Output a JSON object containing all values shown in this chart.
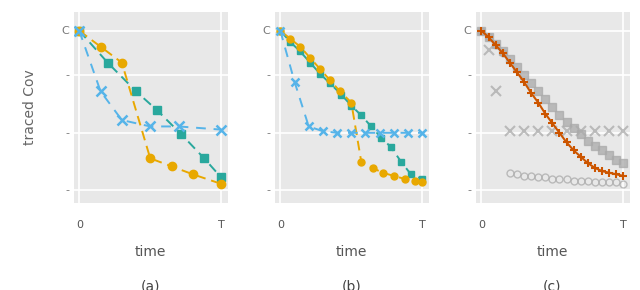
{
  "background_color": "#e8e8e8",
  "ylabel": "traced Cov",
  "xlabel": "time",
  "subplot_labels": [
    "(a)",
    "(b)",
    "(c)"
  ],
  "panel_a": {
    "green_x": [
      0,
      0.2,
      0.4,
      0.55,
      0.72,
      0.88,
      1.0
    ],
    "green_y": [
      1.0,
      0.8,
      0.62,
      0.5,
      0.35,
      0.2,
      0.08
    ],
    "orange_x": [
      0,
      0.15,
      0.3,
      0.5,
      0.65,
      0.8,
      1.0
    ],
    "orange_y": [
      1.0,
      0.9,
      0.8,
      0.2,
      0.15,
      0.1,
      0.04
    ],
    "blue_x": [
      0,
      0.15,
      0.3,
      0.5,
      0.7,
      1.0
    ],
    "blue_y": [
      1.0,
      0.62,
      0.44,
      0.4,
      0.4,
      0.38
    ]
  },
  "panel_b": {
    "green_x": [
      0,
      0.07,
      0.14,
      0.21,
      0.28,
      0.35,
      0.43,
      0.5,
      0.57,
      0.64,
      0.71,
      0.78,
      0.85,
      0.92,
      1.0
    ],
    "green_y": [
      1.0,
      0.93,
      0.87,
      0.8,
      0.73,
      0.67,
      0.6,
      0.53,
      0.47,
      0.4,
      0.33,
      0.27,
      0.18,
      0.1,
      0.07
    ],
    "orange_x": [
      0,
      0.07,
      0.14,
      0.21,
      0.28,
      0.35,
      0.42,
      0.5,
      0.57,
      0.65,
      0.72,
      0.8,
      0.88,
      0.95,
      1.0
    ],
    "orange_y": [
      1.0,
      0.95,
      0.9,
      0.83,
      0.76,
      0.69,
      0.62,
      0.55,
      0.18,
      0.14,
      0.11,
      0.09,
      0.07,
      0.06,
      0.05
    ],
    "blue_x": [
      0,
      0.1,
      0.2,
      0.3,
      0.4,
      0.5,
      0.6,
      0.7,
      0.8,
      0.9,
      1.0
    ],
    "blue_y": [
      1.0,
      0.68,
      0.4,
      0.37,
      0.36,
      0.36,
      0.36,
      0.36,
      0.36,
      0.36,
      0.36
    ]
  },
  "panel_c": {
    "orange_x": [
      0,
      0.05,
      0.1,
      0.15,
      0.2,
      0.25,
      0.3,
      0.35,
      0.4,
      0.45,
      0.5,
      0.55,
      0.6,
      0.65,
      0.7,
      0.75,
      0.8,
      0.85,
      0.9,
      0.95,
      1.0
    ],
    "orange_y": [
      1.0,
      0.96,
      0.91,
      0.86,
      0.8,
      0.74,
      0.68,
      0.61,
      0.55,
      0.48,
      0.42,
      0.36,
      0.3,
      0.25,
      0.21,
      0.17,
      0.14,
      0.12,
      0.11,
      0.1,
      0.09
    ],
    "gray_sq_x": [
      0,
      0.05,
      0.1,
      0.15,
      0.2,
      0.25,
      0.3,
      0.35,
      0.4,
      0.45,
      0.5,
      0.55,
      0.6,
      0.65,
      0.7,
      0.75,
      0.8,
      0.85,
      0.9,
      0.95,
      1.0
    ],
    "gray_sq_y": [
      1.0,
      0.96,
      0.92,
      0.87,
      0.82,
      0.77,
      0.72,
      0.67,
      0.62,
      0.57,
      0.52,
      0.47,
      0.43,
      0.39,
      0.35,
      0.31,
      0.28,
      0.25,
      0.22,
      0.19,
      0.17
    ],
    "gray_x_x": [
      0.05,
      0.1,
      0.2,
      0.3,
      0.4,
      0.5,
      0.6,
      0.7,
      0.8,
      0.9,
      1.0
    ],
    "gray_x_y": [
      0.88,
      0.62,
      0.37,
      0.37,
      0.37,
      0.37,
      0.37,
      0.37,
      0.37,
      0.37,
      0.37
    ],
    "gray_circ_x": [
      0,
      0.05,
      0.1,
      0.15,
      0.2,
      0.25,
      0.3,
      0.35,
      0.4,
      0.45,
      0.5,
      0.55,
      0.6,
      0.65,
      0.7,
      0.75,
      0.8,
      0.85,
      0.9,
      0.95,
      1.0
    ],
    "gray_circ_y": [
      1.0,
      0.96,
      0.91,
      0.86,
      0.11,
      0.1,
      0.09,
      0.09,
      0.08,
      0.08,
      0.07,
      0.07,
      0.07,
      0.06,
      0.06,
      0.06,
      0.05,
      0.05,
      0.05,
      0.05,
      0.04
    ]
  },
  "colors": {
    "green": "#29a89d",
    "orange": "#e8a800",
    "blue": "#56b4e9",
    "orange_c": "#cc5500",
    "gray": "#aaaaaa"
  },
  "ylim": [
    -0.08,
    1.12
  ],
  "xlim": [
    -0.04,
    1.05
  ],
  "ytick_positions": [
    0.0,
    0.36,
    0.72,
    1.0
  ],
  "ytick_labels_left": [
    "-",
    "-",
    "-",
    "C"
  ],
  "xtick_positions": [
    0.0,
    1.0
  ],
  "xtick_labels": [
    "0",
    "T"
  ]
}
